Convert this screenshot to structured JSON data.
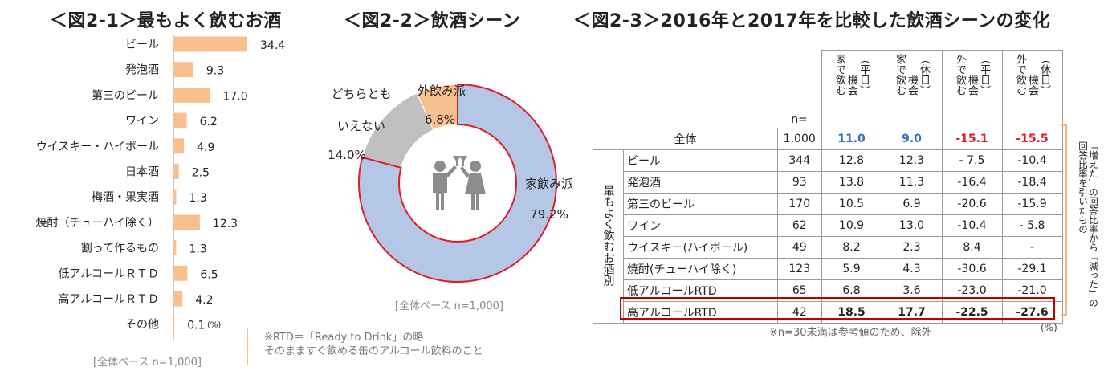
{
  "chart_data": [
    {
      "type": "bar",
      "title": "＜図2-1＞最もよく飲むお酒",
      "categories": [
        "ビール",
        "発泡酒",
        "第三のビール",
        "ワイン",
        "ウイスキー・ハイボール",
        "日本酒",
        "梅酒・果実酒",
        "焼酎（チューハイ除く）",
        "割って作るもの",
        "低アルコールＲＴＤ",
        "高アルコールＲＴＤ",
        "その他"
      ],
      "values": [
        34.4,
        9.3,
        17.0,
        6.2,
        4.9,
        2.5,
        1.3,
        12.3,
        1.3,
        6.5,
        4.2,
        0.1
      ],
      "value_labels": [
        "34.4",
        "9.3",
        "17.0",
        "6.2",
        "4.9",
        "2.5",
        "1.3",
        "12.3",
        "1.3",
        "6.5",
        "4.2",
        "0.1"
      ],
      "unit": "(%)",
      "base_note": "[全体ベース n=1,000]",
      "color": "#f8c08e",
      "orientation": "horizontal"
    },
    {
      "type": "pie",
      "title": "＜図2-2＞飲酒シーン",
      "slices": [
        {
          "label": "家飲み派",
          "value": 79.2,
          "value_label": "79.2%",
          "color": "#b4c7e7"
        },
        {
          "label": "どちらとも\nいえない",
          "value": 14.0,
          "value_label": "14.0%",
          "color": "#c0c0c0"
        },
        {
          "label": "外飲み派",
          "value": 6.8,
          "value_label": "6.8%",
          "color": "#f8c08e"
        }
      ],
      "base_note": "[全体ベース n=1,000]",
      "highlight_color": "#e31b23"
    },
    {
      "type": "table",
      "title": "＜図2-3＞2016年と2017年を比較した飲酒シーンの変化",
      "columns": [
        "n=",
        "家で飲む機会（平日）",
        "家で飲む機会（休日）",
        "外で飲む機会（平日）",
        "外で飲む機会（休日）"
      ],
      "column_headers_vertical": [
        {
          "line1": "家で飲む",
          "line2": "機会",
          "line3": "（平日）"
        },
        {
          "line1": "家で飲む",
          "line2": "機会",
          "line3": "（休日）"
        },
        {
          "line1": "外で飲む",
          "line2": "機会",
          "line3": "（平日）"
        },
        {
          "line1": "外で飲む",
          "line2": "機会",
          "line3": "（休日）"
        }
      ],
      "n_header": "n=",
      "total_row": {
        "label": "全体",
        "n": "1,000",
        "values": [
          "11.0",
          "9.0",
          "-15.1",
          "-15.5"
        ]
      },
      "group_label": "最もよく飲むお酒別",
      "rows": [
        {
          "label": "ビール",
          "n": "344",
          "values": [
            "12.8",
            "12.3",
            "- 7.5",
            "-10.4"
          ]
        },
        {
          "label": "発泡酒",
          "n": "93",
          "values": [
            "13.8",
            "11.3",
            "-16.4",
            "-18.4"
          ]
        },
        {
          "label": "第三のビール",
          "n": "170",
          "values": [
            "10.5",
            "6.9",
            "-20.6",
            "-15.9"
          ]
        },
        {
          "label": "ワイン",
          "n": "62",
          "values": [
            "10.9",
            "13.0",
            "-10.4",
            "- 5.8"
          ]
        },
        {
          "label": "ウイスキー(ハイボール)",
          "n": "49",
          "values": [
            "8.2",
            "2.3",
            "8.4",
            "-"
          ]
        },
        {
          "label": "焼酎(チューハイ除く)",
          "n": "123",
          "values": [
            "5.9",
            "4.3",
            "-30.6",
            "-29.1"
          ]
        },
        {
          "label": "低アルコールRTD",
          "n": "65",
          "values": [
            "6.8",
            "3.6",
            "-23.0",
            "-21.0"
          ]
        },
        {
          "label": "高アルコールRTD",
          "n": "42",
          "values": [
            "18.5",
            "17.7",
            "-22.5",
            "-27.6"
          ]
        }
      ],
      "side_note": "「増えた」の回答比率から「減った」の回答比率を引いたもの",
      "footnote": "※n=30未満は参考値のため、除外",
      "unit": "(%)",
      "colors": {
        "positive": "#2e74b5",
        "negative": "#e31b23",
        "highlight_border": "#c00000",
        "bracket": "#f4b183"
      }
    }
  ],
  "rtd_note": {
    "line1": "※RTD＝「Ready to Drink」の略",
    "line2": "そのまますぐ飲める缶のアルコール飲料のこと"
  }
}
